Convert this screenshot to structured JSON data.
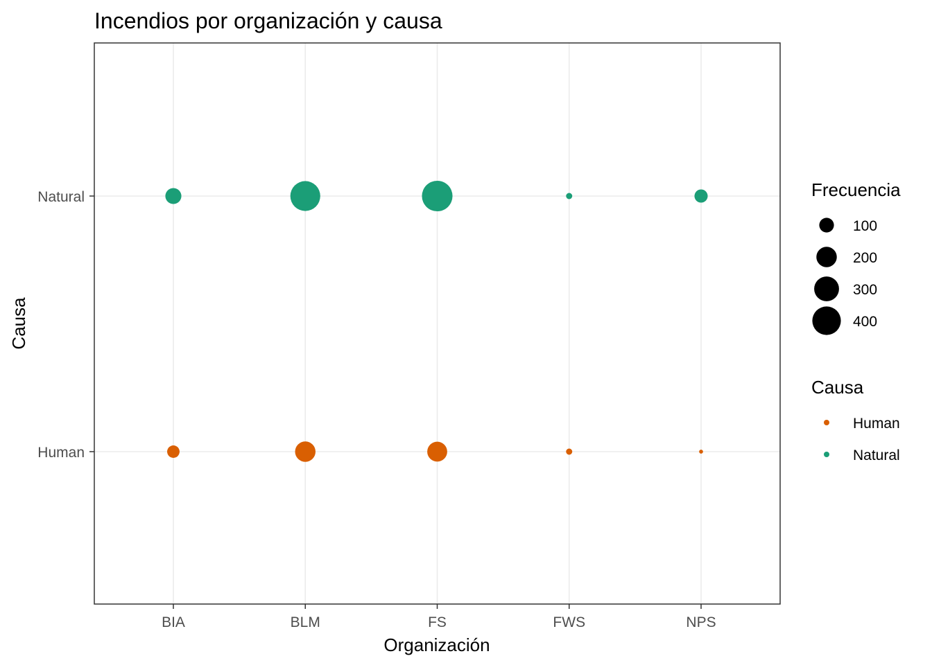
{
  "chart_data": {
    "type": "scatter",
    "title": "Incendios por organización y causa",
    "xlabel": "Organización",
    "ylabel": "Causa",
    "categories": [
      "BIA",
      "BLM",
      "FS",
      "FWS",
      "NPS"
    ],
    "y_categories": [
      "Human",
      "Natural"
    ],
    "grid": true,
    "series": [
      {
        "name": "Human",
        "color": "#D95F02",
        "x": [
          "BIA",
          "BLM",
          "FS",
          "FWS",
          "NPS"
        ],
        "values": [
          70,
          200,
          190,
          15,
          5
        ]
      },
      {
        "name": "Natural",
        "color": "#1B9E77",
        "x": [
          "BIA",
          "BLM",
          "FS",
          "FWS",
          "NPS"
        ],
        "values": [
          120,
          440,
          460,
          15,
          80
        ]
      }
    ],
    "size_legend": {
      "title": "Frecuencia",
      "values": [
        100,
        200,
        300,
        400
      ],
      "labels": [
        "100",
        "200",
        "300",
        "400"
      ]
    },
    "color_legend": {
      "title": "Causa",
      "entries": [
        "Human",
        "Natural"
      ]
    },
    "legend_position": "right"
  }
}
